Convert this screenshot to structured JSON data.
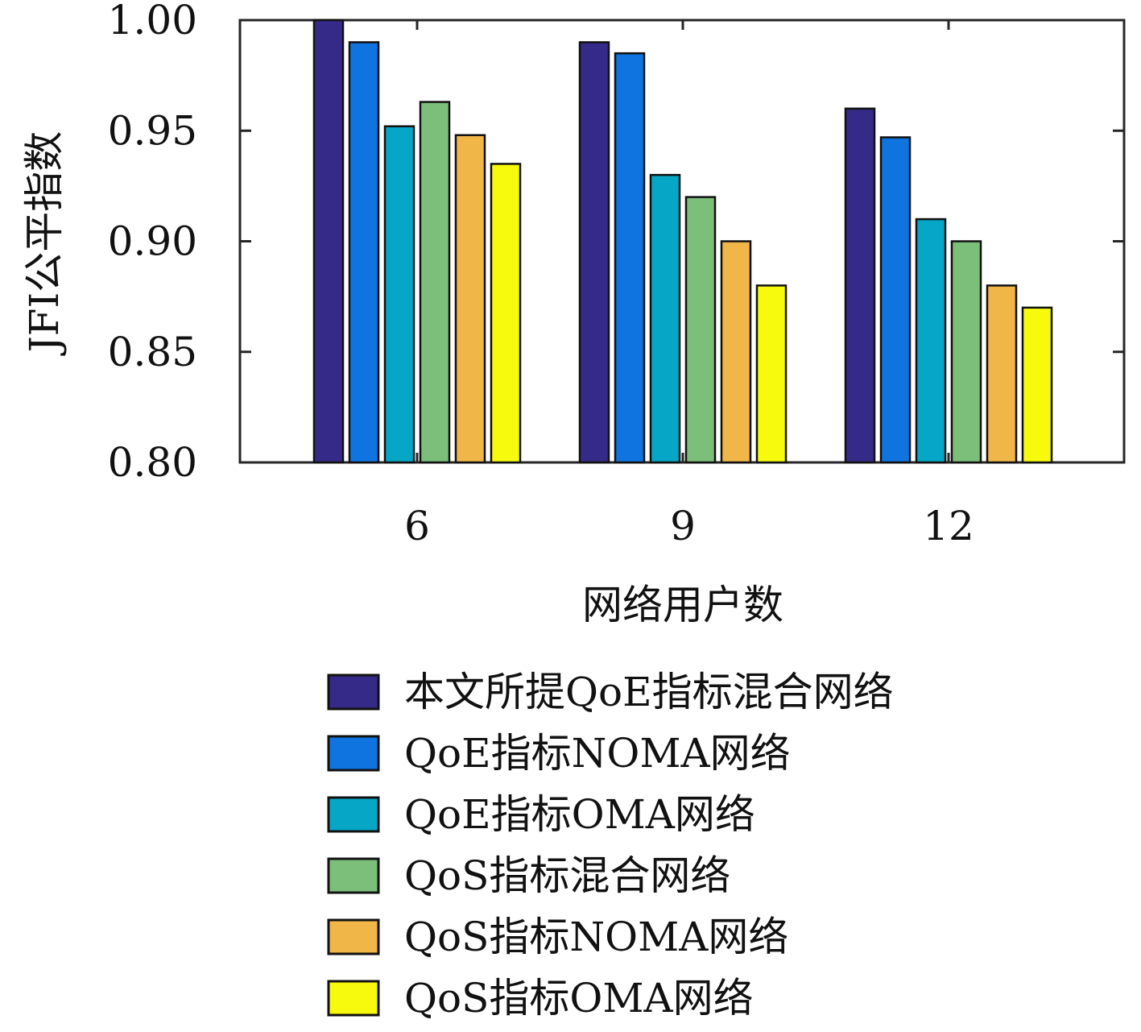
{
  "chart_data": {
    "type": "bar",
    "xlabel": "网络用户数",
    "ylabel": "JFI公平指数",
    "categories": [
      "6",
      "9",
      "12"
    ],
    "ylim": [
      0.8,
      1.0
    ],
    "yticks": [
      "0.80",
      "0.85",
      "0.90",
      "0.95",
      "1.00"
    ],
    "ytick_values": [
      0.8,
      0.85,
      0.9,
      0.95,
      1.0
    ],
    "grid": false,
    "legend_position": "bottom",
    "series": [
      {
        "name": "本文所提QoE指标混合网络",
        "color": "#352a87",
        "values": [
          1.0,
          0.99,
          0.96
        ]
      },
      {
        "name": "QoE指标NOMA网络",
        "color": "#0f74e0",
        "values": [
          0.99,
          0.985,
          0.947
        ]
      },
      {
        "name": "QoE指标OMA网络",
        "color": "#06a7c6",
        "values": [
          0.952,
          0.93,
          0.91
        ]
      },
      {
        "name": "QoS指标混合网络",
        "color": "#7cbf7b",
        "values": [
          0.963,
          0.92,
          0.9
        ]
      },
      {
        "name": "QoS指标NOMA网络",
        "color": "#f0b648",
        "values": [
          0.948,
          0.9,
          0.88
        ]
      },
      {
        "name": "QoS指标OMA网络",
        "color": "#f8fa0d",
        "values": [
          0.935,
          0.88,
          0.87
        ]
      }
    ]
  }
}
